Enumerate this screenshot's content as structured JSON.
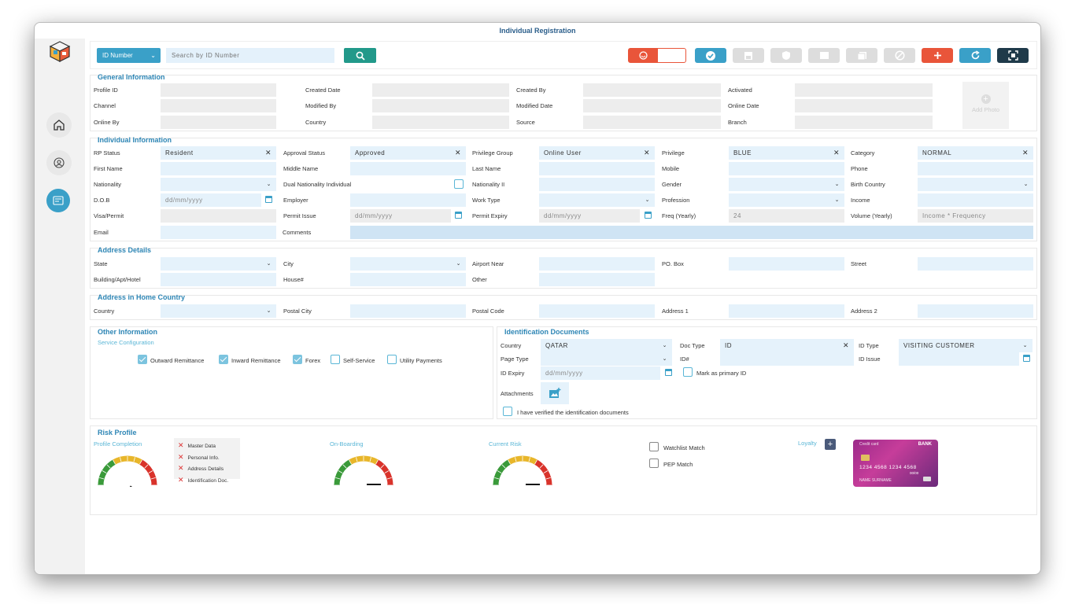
{
  "window": {
    "title": "Individual Registration"
  },
  "search": {
    "type": "ID Number",
    "placeholder": "Search by ID Number"
  },
  "general": {
    "title": "General Information",
    "profile_id": "Profile ID",
    "created_date": "Created Date",
    "created_by": "Created By",
    "activated": "Activated",
    "channel": "Channel",
    "modified_by": "Modified By",
    "modified_date": "Modified Date",
    "online_date": "Online Date",
    "online_by": "Online By",
    "country": "Country",
    "source": "Source",
    "branch": "Branch",
    "add_photo": "Add Photo"
  },
  "individual": {
    "title": "Individual Information",
    "rp_status": "RP Status",
    "rp_status_val": "Resident",
    "approval_status": "Approval Status",
    "approval_status_val": "Approved",
    "privilege_group": "Privilege Group",
    "privilege_group_val": "Online User",
    "privilege": "Privilege",
    "privilege_val": "BLUE",
    "category": "Category",
    "category_val": "NORMAL",
    "first_name": "First Name",
    "middle_name": "Middle Name",
    "last_name": "Last Name",
    "mobile": "Mobile",
    "phone": "Phone",
    "nationality": "Nationality",
    "dual_nationality": "Dual Nationality Individual",
    "nationality2": "Nationality II",
    "gender": "Gender",
    "birth_country": "Birth Country",
    "dob": "D.O.B",
    "date_ph": "dd/mm/yyyy",
    "employer": "Employer",
    "work_type": "Work Type",
    "profession": "Profession",
    "income": "Income",
    "visa": "Visa/Permit",
    "permit_issue": "Permit Issue",
    "permit_expiry": "Permit Expiry",
    "freq": "Freq (Yearly)",
    "freq_val": "24",
    "volume": "Volume (Yearly)",
    "volume_ph": "Income * Frequency",
    "email": "Email",
    "comments": "Comments"
  },
  "address": {
    "title": "Address Details",
    "state": "State",
    "city": "City",
    "airport": "Airport Near",
    "po_box": "PO. Box",
    "street": "Street",
    "building": "Building/Apt/Hotel",
    "house": "House#",
    "other": "Other"
  },
  "home": {
    "title": "Address in Home Country",
    "country": "Country",
    "postal_city": "Postal City",
    "postal_code": "Postal Code",
    "address1": "Address 1",
    "address2": "Address 2"
  },
  "other_info": {
    "title": "Other Information",
    "sub": "Service Configuration",
    "services": [
      {
        "label": "Outward Remittance",
        "checked": true
      },
      {
        "label": "Inward Remittance",
        "checked": true
      },
      {
        "label": "Forex",
        "checked": true
      },
      {
        "label": "Self-Service",
        "checked": false
      },
      {
        "label": "Utility Payments",
        "checked": false
      }
    ]
  },
  "id_docs": {
    "title": "Identification Documents",
    "country": "Country",
    "country_val": "QATAR",
    "doc_type": "Doc Type",
    "doc_type_val": "ID",
    "id_type": "ID Type",
    "id_type_val": "VISITING CUSTOMER",
    "page_type": "Page Type",
    "id_no": "ID#",
    "id_issue": "ID Issue",
    "id_expiry": "ID Expiry",
    "primary": "Mark as primary ID",
    "attachments": "Attachments",
    "verified": "I have verified the identification documents"
  },
  "risk": {
    "title": "Risk Profile",
    "profile_completion": "Profile Completion",
    "checklist": [
      "Master Data",
      "Personal Info.",
      "Address Details",
      "Identification Doc."
    ],
    "onboarding": "On-Boarding",
    "current_risk": "Current Risk",
    "watchlist": "Watchlist Match",
    "pep": "PEP Match",
    "loyalty": "Loyalty",
    "card": {
      "label": "Credit card",
      "bank": "BANK",
      "number": "1234 4568 1234 4568",
      "valid": "00/00",
      "name": "NAME SURNAME"
    }
  },
  "colors": {
    "accent": "#2e86b5",
    "field": "#e5f2fb",
    "save": "#e9553a",
    "teal": "#22998a",
    "dark": "#1f3a4a"
  }
}
